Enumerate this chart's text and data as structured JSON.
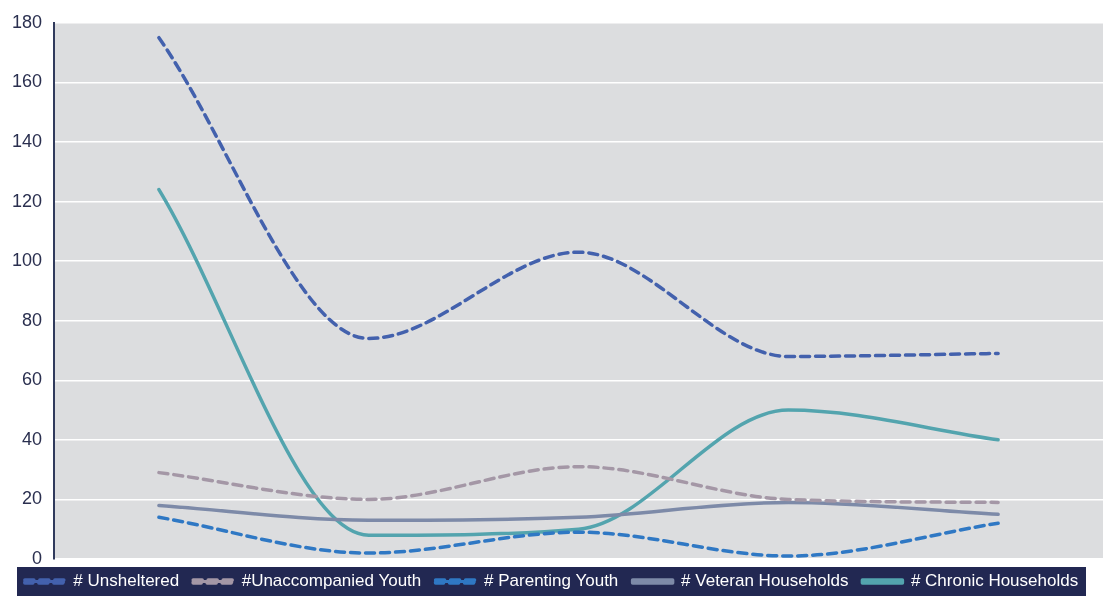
{
  "chart_data": {
    "type": "line",
    "categories": [
      null,
      null,
      null,
      null,
      null
    ],
    "series": [
      {
        "name": "# Unsheltered",
        "color": "#4361ad",
        "line_style": "dashed",
        "values": [
          175,
          74,
          103,
          68,
          69
        ]
      },
      {
        "name": "#Unaccompanied Youth",
        "color": "#a497a6",
        "line_style": "dashed",
        "values": [
          29,
          20,
          31,
          20,
          19
        ]
      },
      {
        "name": "# Parenting Youth",
        "color": "#2f78c4",
        "line_style": "dashed",
        "values": [
          14,
          2,
          9,
          1,
          12
        ]
      },
      {
        "name": "# Veteran Households",
        "color": "#7d8aa8",
        "line_style": "solid",
        "values": [
          18,
          13,
          14,
          19,
          15
        ]
      },
      {
        "name": "# Chronic Households",
        "color": "#53a4ae",
        "line_style": "solid",
        "values": [
          124,
          8,
          10,
          50,
          40
        ]
      }
    ],
    "ylim": [
      0,
      180
    ],
    "yticks": [
      0,
      20,
      40,
      60,
      80,
      100,
      120,
      140,
      160,
      180
    ],
    "grid": "y",
    "legend": "bottom",
    "marker": "none",
    "tick_labels": "y"
  }
}
